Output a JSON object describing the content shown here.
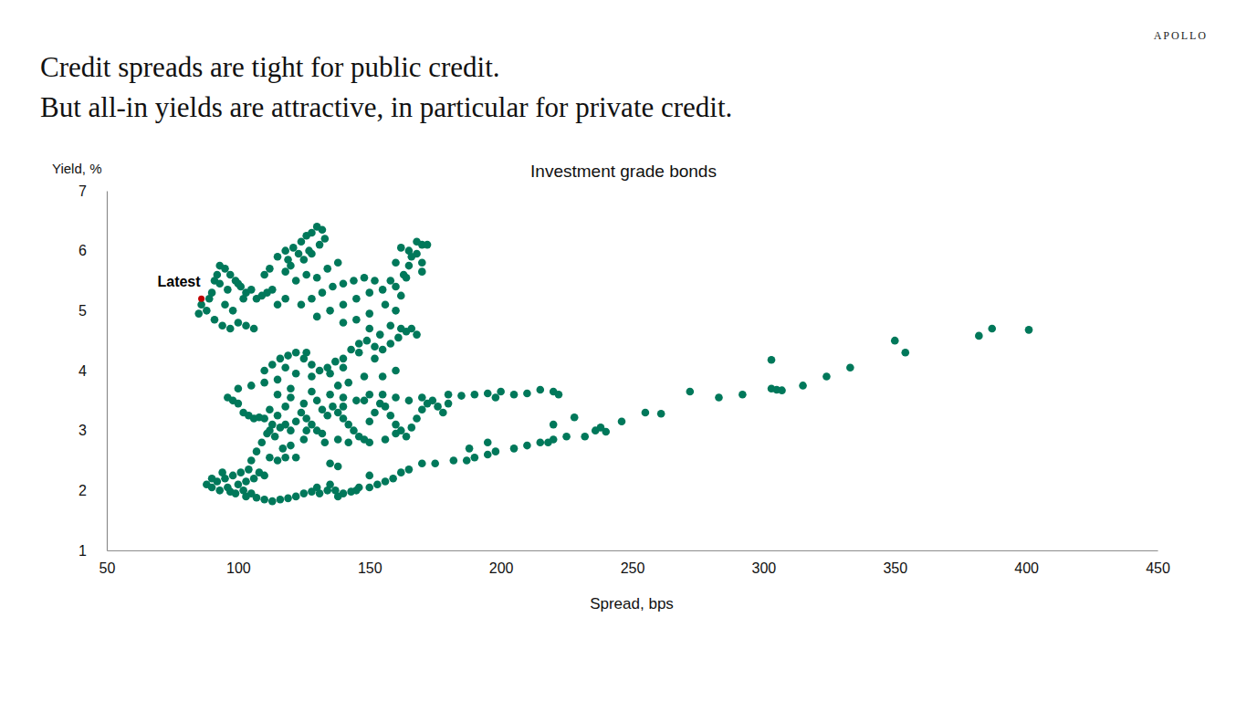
{
  "chart_data": {
    "type": "scatter",
    "brand": "APOLLO",
    "title": "Credit spreads are tight for public credit.",
    "subtitle": "But all-in yields are attractive, in particular for private credit.",
    "plot_title": "Investment grade bonds",
    "x_label": "Spread, bps",
    "y_label": "Yield, %",
    "color": "#00785a",
    "marker": "circle",
    "grid": false,
    "xlim": [
      50,
      450
    ],
    "xticks": [
      50,
      100,
      150,
      200,
      250,
      300,
      350,
      400,
      450
    ],
    "ylim": [
      1,
      7
    ],
    "yticks": [
      1,
      2,
      3,
      4,
      5,
      6,
      7
    ],
    "annotations": [
      {
        "text": "Latest",
        "x": 86,
        "y": 5.2,
        "color": "#c00000"
      }
    ],
    "x": [
      88,
      90,
      92,
      93,
      95,
      96,
      97,
      98,
      100,
      101,
      102,
      103,
      104,
      105,
      106,
      108,
      110,
      90,
      94,
      99,
      103,
      107,
      110,
      113,
      116,
      119,
      122,
      125,
      128,
      131,
      134,
      137,
      140,
      143,
      146,
      150,
      153,
      156,
      159,
      162,
      130,
      135,
      138,
      145,
      150,
      105,
      107,
      109,
      111,
      113,
      115,
      112,
      115,
      118,
      122,
      135,
      138,
      96,
      98,
      100,
      102,
      104,
      106,
      108,
      110,
      112,
      114,
      116,
      118,
      120,
      122,
      124,
      126,
      128,
      130,
      132,
      134,
      136,
      138,
      140,
      142,
      144,
      146,
      148,
      150,
      152,
      154,
      156,
      158,
      160,
      162,
      164,
      166,
      168,
      170,
      172,
      174,
      176,
      178,
      180,
      125,
      130,
      135,
      140,
      145,
      150,
      155,
      160,
      165,
      170,
      118,
      112,
      120,
      115,
      128,
      133,
      138,
      142,
      150,
      156,
      160,
      125,
      120,
      140,
      148,
      132,
      126,
      117,
      100,
      105,
      110,
      115,
      110,
      113,
      116,
      119,
      122,
      125,
      128,
      131,
      134,
      137,
      140,
      143,
      146,
      149,
      152,
      155,
      158,
      161,
      164,
      166,
      168,
      154,
      150,
      146,
      140,
      135,
      128,
      122,
      118,
      126,
      142,
      138,
      148,
      155,
      160,
      120,
      152,
      158,
      162,
      130,
      135,
      140,
      145,
      150,
      155,
      158,
      160,
      162,
      152,
      148,
      144,
      140,
      136,
      132,
      128,
      124,
      122,
      126,
      130,
      134,
      138,
      128,
      125,
      120,
      118,
      156,
      160,
      150,
      145,
      140,
      163,
      165,
      170,
      160,
      162,
      165,
      168,
      170,
      172,
      168,
      166,
      170,
      164,
      115,
      118,
      121,
      124,
      126,
      128,
      130,
      132,
      133,
      131,
      127,
      123,
      119,
      112,
      110,
      85,
      86,
      88,
      89,
      90,
      91,
      92,
      93,
      95,
      97,
      99,
      101,
      103,
      105,
      107,
      109,
      111,
      113,
      91,
      94,
      97,
      100,
      103,
      106,
      98,
      100,
      96,
      93,
      102,
      95,
      115,
      118,
      180,
      185,
      190,
      195,
      200,
      205,
      210,
      215,
      220,
      222,
      198,
      165,
      170,
      175,
      182,
      187,
      190,
      195,
      198,
      205,
      210,
      215,
      218,
      220,
      225,
      220,
      228,
      232,
      236,
      240,
      238,
      246,
      255,
      261,
      195,
      188,
      272,
      283,
      292,
      303,
      305,
      307,
      303,
      315,
      324,
      333,
      350,
      354,
      382,
      387,
      401
    ],
    "values": [
      2.1,
      2.05,
      2.15,
      2.0,
      2.2,
      2.05,
      1.98,
      2.25,
      2.1,
      2.3,
      2.0,
      2.15,
      2.35,
      1.95,
      2.2,
      2.3,
      2.25,
      2.2,
      2.3,
      1.95,
      1.9,
      1.88,
      1.85,
      1.82,
      1.85,
      1.87,
      1.9,
      1.95,
      1.98,
      1.95,
      2.0,
      2.0,
      1.95,
      1.98,
      2.05,
      2.05,
      2.1,
      2.15,
      2.2,
      2.3,
      2.05,
      2.1,
      1.9,
      2.0,
      2.25,
      2.5,
      2.65,
      2.8,
      2.95,
      3.1,
      3.25,
      2.55,
      2.5,
      2.55,
      2.55,
      2.45,
      2.4,
      3.55,
      3.5,
      3.45,
      3.3,
      3.25,
      3.2,
      3.22,
      3.2,
      3.0,
      2.9,
      3.05,
      3.1,
      3.0,
      3.15,
      3.3,
      3.2,
      3.1,
      3.0,
      2.95,
      3.25,
      3.4,
      3.3,
      3.2,
      3.1,
      3.0,
      2.9,
      2.85,
      3.15,
      3.3,
      3.45,
      3.4,
      3.25,
      3.1,
      3.0,
      2.9,
      3.05,
      3.2,
      3.35,
      3.45,
      3.5,
      3.4,
      3.3,
      3.45,
      3.45,
      3.5,
      3.6,
      3.55,
      3.5,
      3.6,
      3.6,
      3.55,
      3.5,
      3.55,
      3.4,
      3.35,
      3.55,
      3.6,
      3.65,
      2.8,
      2.85,
      2.8,
      2.8,
      2.85,
      2.95,
      2.85,
      2.75,
      3.4,
      3.5,
      3.35,
      3.0,
      2.7,
      3.7,
      3.75,
      3.8,
      3.85,
      4.0,
      4.1,
      4.2,
      4.25,
      4.3,
      4.2,
      4.1,
      4.0,
      4.05,
      4.15,
      4.2,
      4.35,
      4.45,
      4.5,
      4.4,
      4.35,
      4.45,
      4.55,
      4.65,
      4.7,
      4.6,
      4.6,
      4.7,
      4.3,
      4.05,
      3.95,
      3.9,
      3.95,
      4.05,
      4.3,
      3.8,
      3.75,
      3.9,
      3.9,
      4.0,
      3.7,
      4.2,
      4.75,
      4.7,
      4.9,
      5.0,
      5.1,
      5.2,
      5.3,
      5.35,
      5.5,
      5.4,
      5.25,
      5.5,
      5.55,
      5.5,
      5.45,
      5.4,
      5.3,
      5.2,
      5.1,
      5.5,
      5.6,
      5.55,
      5.7,
      5.8,
      5.95,
      5.85,
      5.75,
      5.65,
      5.1,
      5.0,
      4.95,
      4.85,
      4.8,
      5.6,
      5.75,
      5.65,
      5.8,
      6.05,
      6.0,
      5.95,
      6.1,
      6.1,
      6.15,
      5.9,
      5.8,
      5.55,
      5.9,
      6.0,
      6.05,
      6.15,
      6.25,
      6.3,
      6.4,
      6.35,
      6.2,
      6.1,
      6.0,
      5.95,
      5.85,
      5.7,
      5.6,
      4.95,
      5.1,
      5.0,
      5.2,
      5.3,
      5.5,
      5.6,
      5.75,
      5.7,
      5.6,
      5.5,
      5.4,
      5.3,
      5.35,
      5.2,
      5.25,
      5.3,
      5.35,
      4.85,
      4.75,
      4.7,
      4.8,
      4.75,
      4.7,
      5.0,
      5.45,
      5.35,
      5.45,
      5.2,
      5.1,
      5.1,
      5.2,
      3.6,
      3.58,
      3.6,
      3.62,
      3.65,
      3.6,
      3.62,
      3.68,
      3.65,
      3.6,
      3.55,
      2.35,
      2.45,
      2.45,
      2.5,
      2.5,
      2.55,
      2.6,
      2.65,
      2.7,
      2.75,
      2.8,
      2.8,
      2.85,
      2.9,
      3.1,
      3.22,
      2.9,
      3.0,
      2.98,
      3.05,
      3.15,
      3.3,
      3.28,
      2.8,
      2.7,
      3.65,
      3.55,
      3.6,
      3.7,
      3.68,
      3.67,
      4.18,
      3.75,
      3.9,
      4.05,
      4.5,
      4.3,
      4.58,
      4.7,
      4.68
    ]
  }
}
